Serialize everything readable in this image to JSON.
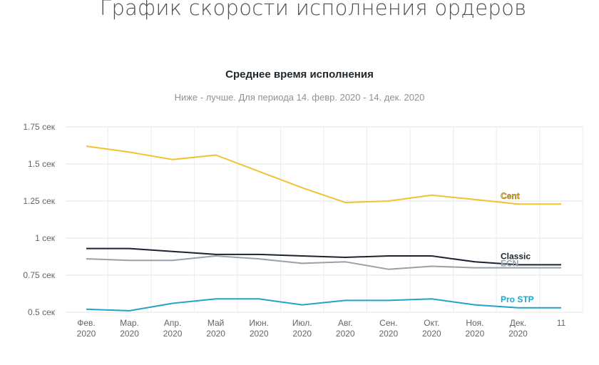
{
  "page_title": "График скорости исполнения ордеров",
  "chart_data": {
    "type": "line",
    "title": "Среднее время исполнения",
    "subtitle": "Ниже - лучше. Для периода 14. февр. 2020 - 14. дек. 2020",
    "xlabel": "",
    "ylabel": "",
    "ylim": [
      0.5,
      1.75
    ],
    "y_ticks": [
      "0.5 сек",
      "0.75 сек",
      "1 сек",
      "1.25 сек",
      "1.5 сек",
      "1.75 сек"
    ],
    "y_tick_values": [
      0.5,
      0.75,
      1.0,
      1.25,
      1.5,
      1.75
    ],
    "categories": [
      [
        "Фев.",
        "2020"
      ],
      [
        "Мар.",
        "2020"
      ],
      [
        "Апр.",
        "2020"
      ],
      [
        "Май",
        "2020"
      ],
      [
        "Июн.",
        "2020"
      ],
      [
        "Июл.",
        "2020"
      ],
      [
        "Авг.",
        "2020"
      ],
      [
        "Сен.",
        "2020"
      ],
      [
        "Окт.",
        "2020"
      ],
      [
        "Ноя.",
        "2020"
      ],
      [
        "Дек.",
        "2020"
      ],
      [
        "11",
        ""
      ]
    ],
    "grid": true,
    "series": [
      {
        "name": "Cent",
        "color": "#f2c230",
        "values": [
          1.62,
          1.58,
          1.53,
          1.56,
          1.45,
          1.34,
          1.24,
          1.25,
          1.29,
          1.26,
          1.23,
          1.23
        ]
      },
      {
        "name": "Classic",
        "color": "#1a2430",
        "values": [
          0.93,
          0.93,
          0.91,
          0.89,
          0.89,
          0.88,
          0.87,
          0.88,
          0.88,
          0.84,
          0.82,
          0.82
        ]
      },
      {
        "name": "ECN",
        "color": "#9aa0a5",
        "values": [
          0.86,
          0.85,
          0.85,
          0.88,
          0.86,
          0.83,
          0.84,
          0.79,
          0.81,
          0.8,
          0.8,
          0.8
        ]
      },
      {
        "name": "Pro STP",
        "color": "#1ea5c8",
        "values": [
          0.52,
          0.51,
          0.56,
          0.59,
          0.59,
          0.55,
          0.58,
          0.58,
          0.59,
          0.55,
          0.53,
          0.53
        ]
      }
    ]
  }
}
